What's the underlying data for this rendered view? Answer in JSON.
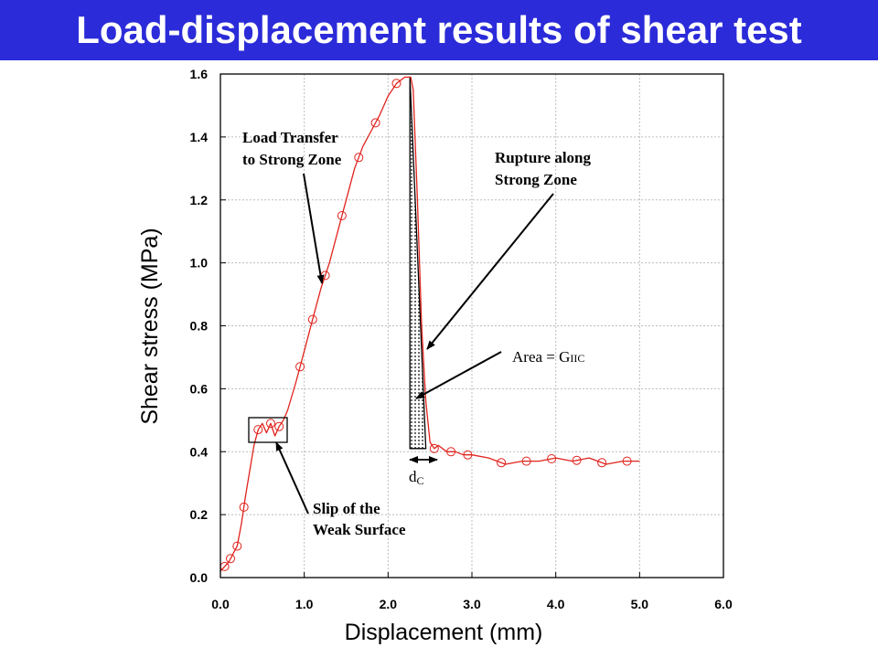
{
  "header": {
    "title": "Load-displacement results of shear test"
  },
  "colors": {
    "title_bg": "#2b2bd9",
    "title_text": "#ffffff",
    "curve": "#e0231d",
    "marker": "#e0231d"
  },
  "chart_data": {
    "type": "line",
    "title": "Load-displacement results of shear test",
    "xlabel": "Displacement (mm)",
    "ylabel": "Shear stress (MPa)",
    "xlim": [
      0.0,
      6.0
    ],
    "ylim": [
      0.0,
      1.6
    ],
    "xticks": [
      "0.0",
      "1.0",
      "2.0",
      "3.0",
      "4.0",
      "5.0",
      "6.0"
    ],
    "yticks": [
      "0.0",
      "0.2",
      "0.4",
      "0.6",
      "0.8",
      "1.0",
      "1.2",
      "1.4",
      "1.6"
    ],
    "grid": true,
    "series": [
      {
        "x": [
          0.0,
          0.1,
          0.2,
          0.25,
          0.3,
          0.35,
          0.4,
          0.45,
          0.5,
          0.55,
          0.6,
          0.65,
          0.7,
          0.75,
          0.8,
          0.9,
          1.0,
          1.1,
          1.2,
          1.3,
          1.4,
          1.5,
          1.6,
          1.7,
          1.8,
          1.9,
          2.0,
          2.1,
          2.2,
          2.27,
          2.3,
          2.35,
          2.4,
          2.45,
          2.5,
          2.55,
          2.6,
          2.7,
          2.8,
          2.9,
          3.0,
          3.2,
          3.4,
          3.6,
          3.8,
          4.0,
          4.2,
          4.4,
          4.6,
          4.8,
          5.0
        ],
        "y": [
          0.02,
          0.05,
          0.1,
          0.17,
          0.26,
          0.34,
          0.42,
          0.47,
          0.49,
          0.46,
          0.49,
          0.45,
          0.48,
          0.5,
          0.53,
          0.62,
          0.72,
          0.82,
          0.92,
          1.0,
          1.1,
          1.2,
          1.3,
          1.37,
          1.42,
          1.47,
          1.53,
          1.57,
          1.59,
          1.59,
          1.55,
          1.2,
          0.8,
          0.56,
          0.43,
          0.41,
          0.42,
          0.4,
          0.4,
          0.39,
          0.39,
          0.38,
          0.36,
          0.37,
          0.37,
          0.38,
          0.37,
          0.38,
          0.36,
          0.37,
          0.37
        ]
      }
    ],
    "markers_x": [
      0.05,
      0.12,
      0.2,
      0.28,
      0.45,
      0.6,
      0.7,
      0.95,
      1.1,
      1.25,
      1.45,
      1.65,
      1.85,
      2.1,
      2.55,
      2.75,
      2.95,
      3.35,
      3.65,
      3.95,
      4.25,
      4.55,
      4.85
    ],
    "annotations": {
      "load_transfer": [
        "Load Transfer",
        "to Strong Zone"
      ],
      "rupture": [
        "Rupture along",
        "Strong Zone"
      ],
      "area_prefix": "Area = G",
      "area_subscript": "IIC",
      "dc_base": "d",
      "dc_subscript": "C",
      "slip": [
        "Slip of the",
        "Weak Surface"
      ]
    },
    "area_region": {
      "x_start": 2.26,
      "x_end": 2.45,
      "y_base": 0.41,
      "y_peak": 1.59
    }
  }
}
